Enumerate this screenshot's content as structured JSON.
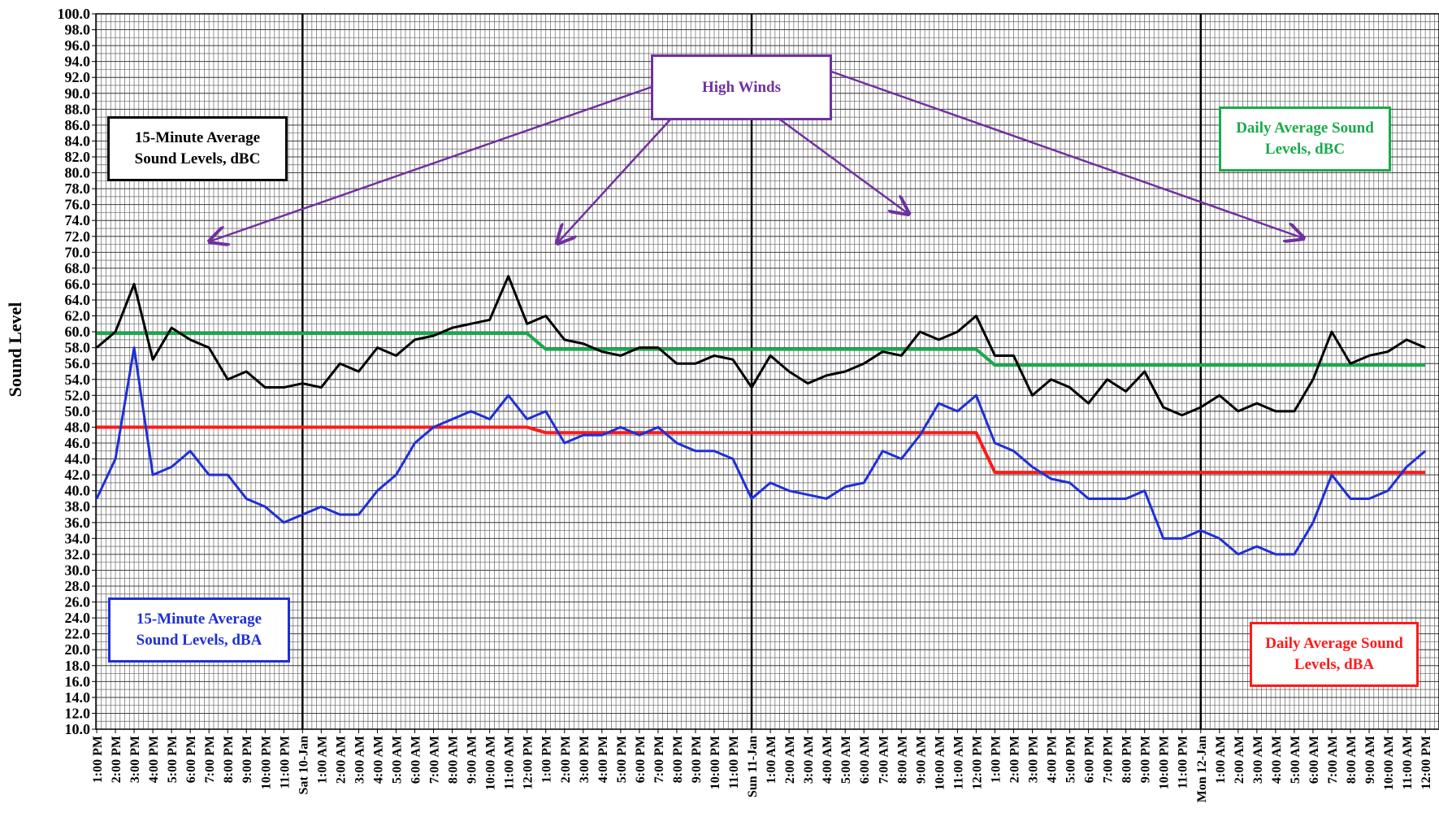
{
  "chart_data": {
    "type": "line",
    "y_label": "Sound Level",
    "annotation": "High Winds",
    "ylim": [
      10,
      100
    ],
    "yticks": [
      {
        "value": 10,
        "label": "10.0"
      },
      {
        "value": 12,
        "label": "12.0"
      },
      {
        "value": 14,
        "label": "14.0"
      },
      {
        "value": 16,
        "label": "16.0"
      },
      {
        "value": 18,
        "label": "18.0"
      },
      {
        "value": 20,
        "label": "20.0"
      },
      {
        "value": 22,
        "label": "22.0"
      },
      {
        "value": 24,
        "label": "24.0"
      },
      {
        "value": 26,
        "label": "26.0"
      },
      {
        "value": 28,
        "label": "28.0"
      },
      {
        "value": 30,
        "label": "30.0"
      },
      {
        "value": 32,
        "label": "32.0"
      },
      {
        "value": 34,
        "label": "34.0"
      },
      {
        "value": 36,
        "label": "36.0"
      },
      {
        "value": 38,
        "label": "38.0"
      },
      {
        "value": 40,
        "label": "40.0"
      },
      {
        "value": 42,
        "label": "42.0"
      },
      {
        "value": 44,
        "label": "44.0"
      },
      {
        "value": 46,
        "label": "46.0"
      },
      {
        "value": 48,
        "label": "48.0"
      },
      {
        "value": 50,
        "label": "50.0"
      },
      {
        "value": 52,
        "label": "52.0"
      },
      {
        "value": 54,
        "label": "54.0"
      },
      {
        "value": 56,
        "label": "56.0"
      },
      {
        "value": 58,
        "label": "58.0"
      },
      {
        "value": 60,
        "label": "60.0"
      },
      {
        "value": 62,
        "label": "62.0"
      },
      {
        "value": 64,
        "label": "64.0"
      },
      {
        "value": 66,
        "label": "66.0"
      },
      {
        "value": 68,
        "label": "68.0"
      },
      {
        "value": 70,
        "label": "70.0"
      },
      {
        "value": 72,
        "label": "72.0"
      },
      {
        "value": 74,
        "label": "74.0"
      },
      {
        "value": 76,
        "label": "76.0"
      },
      {
        "value": 78,
        "label": "78.0"
      },
      {
        "value": 80,
        "label": "80.0"
      },
      {
        "value": 82,
        "label": "82.0"
      },
      {
        "value": 84,
        "label": "84.0"
      },
      {
        "value": 86,
        "label": "86.0"
      },
      {
        "value": 88,
        "label": "88.0"
      },
      {
        "value": 90,
        "label": "90.0"
      },
      {
        "value": 92,
        "label": "92.0"
      },
      {
        "value": 94,
        "label": "94.0"
      },
      {
        "value": 96,
        "label": "96.0"
      },
      {
        "value": 98,
        "label": "98.0"
      },
      {
        "value": 100,
        "label": "100.0"
      }
    ],
    "grid": true,
    "categories": [
      "1:00 PM",
      "2:00 PM",
      "3:00 PM",
      "4:00 PM",
      "5:00 PM",
      "6:00 PM",
      "7:00 PM",
      "8:00 PM",
      "9:00 PM",
      "10:00 PM",
      "11:00 PM",
      "Sat 10-Jan",
      "1:00 AM",
      "2:00 AM",
      "3:00 AM",
      "4:00 AM",
      "5:00 AM",
      "6:00 AM",
      "7:00 AM",
      "8:00 AM",
      "9:00 AM",
      "10:00 AM",
      "11:00 AM",
      "12:00 PM",
      "1:00 PM",
      "2:00 PM",
      "3:00 PM",
      "4:00 PM",
      "5:00 PM",
      "6:00 PM",
      "7:00 PM",
      "8:00 PM",
      "9:00 PM",
      "10:00 PM",
      "11:00 PM",
      "Sun 11-Jan",
      "1:00 AM",
      "2:00 AM",
      "3:00 AM",
      "4:00 AM",
      "5:00 AM",
      "6:00 AM",
      "7:00 AM",
      "8:00 AM",
      "9:00 AM",
      "10:00 AM",
      "11:00 AM",
      "12:00 PM",
      "1:00 PM",
      "2:00 PM",
      "3:00 PM",
      "4:00 PM",
      "5:00 PM",
      "6:00 PM",
      "7:00 PM",
      "8:00 PM",
      "9:00 PM",
      "10:00 PM",
      "11:00 PM",
      "Mon 12-Jan",
      "1:00 AM",
      "2:00 AM",
      "3:00 AM",
      "4:00 AM",
      "5:00 AM",
      "6:00 AM",
      "7:00 AM",
      "8:00 AM",
      "9:00 AM",
      "10:00 AM",
      "11:00 AM",
      "12:00 PM"
    ],
    "series": [
      {
        "name": "15-Minute Average Sound Levels, dBC",
        "color": "#000000",
        "values": [
          58,
          60,
          66,
          56.5,
          60.5,
          59,
          58,
          54,
          55,
          53,
          53,
          53.5,
          53,
          56,
          55,
          58,
          57,
          59,
          59.5,
          60.5,
          61,
          61.5,
          67,
          61,
          62,
          59,
          58.5,
          57.5,
          57,
          58,
          58,
          56,
          56,
          57,
          56.5,
          53,
          57,
          55,
          53.5,
          54.5,
          55,
          56,
          57.5,
          57,
          60,
          59,
          60,
          62,
          57,
          57,
          52,
          54,
          53,
          51,
          54,
          52.5,
          55,
          50.5,
          49.5,
          50.5,
          52,
          50,
          51,
          50,
          50,
          54,
          60,
          56,
          57,
          57.5,
          59,
          58
        ]
      },
      {
        "name": "15-Minute Average Sound Levels, dBA",
        "color": "#1f2fd6",
        "values": [
          39,
          44,
          58,
          42,
          43,
          45,
          42,
          42,
          39,
          38,
          36,
          37,
          38,
          37,
          37,
          40,
          42,
          46,
          48,
          49,
          50,
          49,
          52,
          49,
          50,
          46,
          47,
          47,
          48,
          47,
          48,
          46,
          45,
          45,
          44,
          39,
          41,
          40,
          39.5,
          39,
          40.5,
          41,
          45,
          44,
          47,
          51,
          50,
          52,
          46,
          45,
          43,
          41.5,
          41,
          39,
          39,
          39,
          40,
          34,
          34,
          35,
          34,
          32,
          33,
          32,
          32,
          36,
          42,
          39,
          39,
          40,
          43,
          45
        ]
      },
      {
        "name": "Daily Average Sound Levels, dBC",
        "color": "#1aaa4a",
        "values": [
          59.8,
          59.8,
          59.8,
          59.8,
          59.8,
          59.8,
          59.8,
          59.8,
          59.8,
          59.8,
          59.8,
          59.8,
          59.8,
          59.8,
          59.8,
          59.8,
          59.8,
          59.8,
          59.8,
          59.8,
          59.8,
          59.8,
          59.8,
          59.8,
          57.8,
          57.8,
          57.8,
          57.8,
          57.8,
          57.8,
          57.8,
          57.8,
          57.8,
          57.8,
          57.8,
          57.8,
          57.8,
          57.8,
          57.8,
          57.8,
          57.8,
          57.8,
          57.8,
          57.8,
          57.8,
          57.8,
          57.8,
          57.8,
          55.8,
          55.8,
          55.8,
          55.8,
          55.8,
          55.8,
          55.8,
          55.8,
          55.8,
          55.8,
          55.8,
          55.8,
          55.8,
          55.8,
          55.8,
          55.8,
          55.8,
          55.8,
          55.8,
          55.8,
          55.8,
          55.8,
          55.8,
          55.8
        ]
      },
      {
        "name": "Daily Average Sound Levels, dBA",
        "color": "#ff1a1a",
        "values": [
          48,
          48,
          48,
          48,
          48,
          48,
          48,
          48,
          48,
          48,
          48,
          48,
          48,
          48,
          48,
          48,
          48,
          48,
          48,
          48,
          48,
          48,
          48,
          48,
          47.3,
          47.3,
          47.3,
          47.3,
          47.3,
          47.3,
          47.3,
          47.3,
          47.3,
          47.3,
          47.3,
          47.3,
          47.3,
          47.3,
          47.3,
          47.3,
          47.3,
          47.3,
          47.3,
          47.3,
          47.3,
          47.3,
          47.3,
          47.3,
          42.3,
          42.3,
          42.3,
          42.3,
          42.3,
          42.3,
          42.3,
          42.3,
          42.3,
          42.3,
          42.3,
          42.3,
          42.3,
          42.3,
          42.3,
          42.3,
          42.3,
          42.3,
          42.3,
          42.3,
          42.3,
          42.3,
          42.3,
          42.3
        ]
      }
    ]
  }
}
